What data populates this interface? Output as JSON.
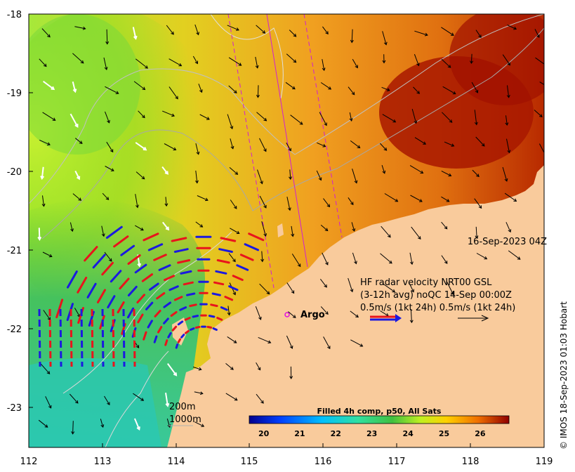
{
  "map": {
    "x_ticks": [
      "112",
      "113",
      "114",
      "115",
      "116",
      "117",
      "118",
      "119"
    ],
    "y_ticks": [
      "-18",
      "-19",
      "-20",
      "-21",
      "-22",
      "-23"
    ],
    "x_range": [
      112,
      119
    ],
    "y_range": [
      -23.5,
      -18
    ],
    "timestamp_label": "16-Sep-2023 04Z",
    "legend": {
      "line1": "HF radar velocity  NRT00 GSL",
      "line2": "(3-12h avg) noQC 14-Sep 00:00Z",
      "line3": "0.5m/s (1kt 24h)  0.5m/s (1kt 24h)"
    },
    "argo_label": "Argo",
    "depth_labels": [
      "200m",
      "1000m"
    ],
    "colorbar": {
      "title": "Filled 4h comp, p50, All Sats",
      "ticks": [
        "20",
        "21",
        "22",
        "23",
        "24",
        "25",
        "26"
      ],
      "range": [
        19.6,
        26.8
      ]
    },
    "credit": "© IMOS 18-Sep-2023 01:03 Hobart",
    "colors": {
      "land": "#f9cb9c",
      "radar_red": "#e8141c",
      "radar_blue": "#1a1ae0",
      "argo_marker": "#e010e0",
      "track": "#d020d0"
    }
  }
}
